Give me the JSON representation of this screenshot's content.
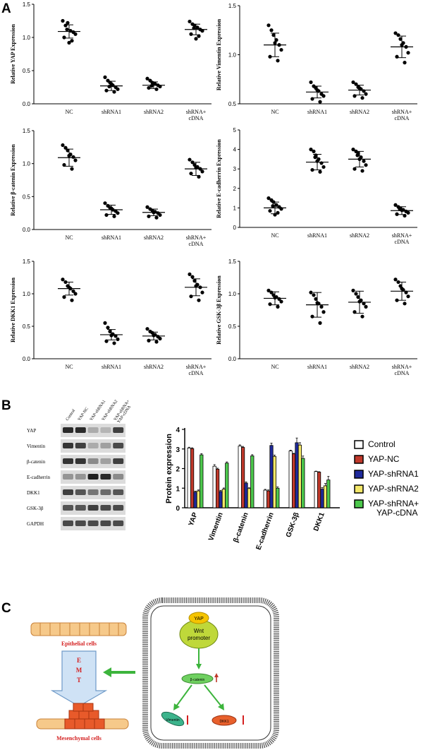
{
  "panels": {
    "a": "A",
    "b": "B",
    "c": "C"
  },
  "colors": {
    "control": "#ffffff",
    "yap_nc": "#c0392b",
    "yap_shrna1": "#1f2a9c",
    "yap_shrna2": "#f4e86a",
    "yap_shrna_cdna": "#4cc84c"
  },
  "chart_data": [
    {
      "type": "scatter",
      "ylabel": "Relative YAP Expression",
      "categories": [
        "NC",
        "shRNA1",
        "shRNA2",
        "shRNA+\ncDNA"
      ],
      "yticks": [
        "0.0",
        "0.5",
        "1.0",
        "1.5"
      ],
      "ylim": [
        0,
        1.5
      ],
      "means": [
        1.09,
        0.27,
        0.28,
        1.12
      ],
      "sd": [
        0.1,
        0.07,
        0.05,
        0.08
      ],
      "points": [
        [
          1.25,
          1.18,
          1.22,
          1.1,
          1.08,
          1.05,
          1.0,
          0.95,
          0.92,
          1.12
        ],
        [
          0.4,
          0.35,
          0.32,
          0.28,
          0.25,
          0.22,
          0.2,
          0.18,
          0.3,
          0.26
        ],
        [
          0.38,
          0.35,
          0.32,
          0.3,
          0.28,
          0.26,
          0.24,
          0.22,
          0.31,
          0.27
        ],
        [
          1.24,
          1.2,
          1.18,
          1.15,
          1.12,
          1.1,
          1.05,
          1.02,
          0.98,
          1.14
        ]
      ]
    },
    {
      "type": "scatter",
      "ylabel": "Relative Vimentin Expression",
      "categories": [
        "NC",
        "shRNA1",
        "shRNA2",
        "shRNA+\ncDNA"
      ],
      "yticks": [
        "0.5",
        "1.0",
        "1.5"
      ],
      "ylim": [
        0.5,
        1.5
      ],
      "means": [
        1.1,
        0.62,
        0.64,
        1.08
      ],
      "sd": [
        0.12,
        0.06,
        0.05,
        0.11
      ],
      "points": [
        [
          1.3,
          1.25,
          1.2,
          1.15,
          1.1,
          1.05,
          0.98,
          0.94,
          1.12
        ],
        [
          0.72,
          0.68,
          0.66,
          0.63,
          0.6,
          0.58,
          0.55,
          0.52,
          0.64
        ],
        [
          0.72,
          0.7,
          0.67,
          0.65,
          0.63,
          0.6,
          0.58,
          0.56,
          0.66
        ],
        [
          1.22,
          1.2,
          1.16,
          1.12,
          1.08,
          1.02,
          0.98,
          0.92,
          1.1
        ]
      ]
    },
    {
      "type": "scatter",
      "ylabel": "Relative β-catenin Expression",
      "categories": [
        "NC",
        "shRNA1",
        "shRNA2",
        "shRNA+\ncDNA"
      ],
      "yticks": [
        "0.0",
        "0.5",
        "1.0",
        "1.5"
      ],
      "ylim": [
        0,
        1.5
      ],
      "means": [
        1.09,
        0.3,
        0.26,
        0.92
      ],
      "sd": [
        0.13,
        0.07,
        0.05,
        0.1
      ],
      "points": [
        [
          1.28,
          1.24,
          1.2,
          1.14,
          1.1,
          1.05,
          0.98,
          0.92,
          1.12
        ],
        [
          0.4,
          0.36,
          0.33,
          0.3,
          0.28,
          0.25,
          0.22,
          0.2,
          0.32
        ],
        [
          0.34,
          0.31,
          0.29,
          0.27,
          0.25,
          0.22,
          0.2,
          0.18,
          0.26
        ],
        [
          1.06,
          1.02,
          0.98,
          0.95,
          0.92,
          0.88,
          0.85,
          0.8,
          0.94
        ]
      ]
    },
    {
      "type": "scatter",
      "ylabel": "Relative E-cadherrin Expression",
      "categories": [
        "NC",
        "shRNA1",
        "shRNA2",
        "shRNA+\ncDNA"
      ],
      "yticks": [
        "0",
        "1",
        "2",
        "3",
        "4",
        "5"
      ],
      "ylim": [
        0,
        5
      ],
      "means": [
        1.0,
        3.35,
        3.5,
        0.86
      ],
      "sd": [
        0.3,
        0.4,
        0.4,
        0.2
      ],
      "points": [
        [
          1.5,
          1.4,
          1.3,
          1.15,
          1.05,
          0.95,
          0.85,
          0.75,
          0.65,
          1.1
        ],
        [
          4.0,
          3.9,
          3.7,
          3.5,
          3.3,
          3.1,
          2.95,
          2.85,
          3.4,
          3.6
        ],
        [
          4.0,
          3.9,
          3.8,
          3.6,
          3.4,
          3.2,
          3.0,
          2.9,
          3.5,
          3.7
        ],
        [
          1.15,
          1.05,
          0.98,
          0.9,
          0.82,
          0.75,
          0.68,
          0.6,
          0.88,
          0.95
        ]
      ]
    },
    {
      "type": "scatter",
      "ylabel": "Relative DKK1 Expression",
      "categories": [
        "NC",
        "shRNA1",
        "shRNA2",
        "shRNA+\ncDNA"
      ],
      "yticks": [
        "0.0",
        "0.5",
        "1.0",
        "1.5"
      ],
      "ylim": [
        0,
        1.5
      ],
      "means": [
        1.08,
        0.37,
        0.35,
        1.1
      ],
      "sd": [
        0.1,
        0.08,
        0.06,
        0.13
      ],
      "points": [
        [
          1.22,
          1.18,
          1.12,
          1.08,
          1.04,
          1.0,
          0.95,
          0.9,
          1.1
        ],
        [
          0.55,
          0.48,
          0.42,
          0.38,
          0.35,
          0.3,
          0.27,
          0.24,
          0.36
        ],
        [
          0.46,
          0.42,
          0.4,
          0.37,
          0.34,
          0.31,
          0.28,
          0.26,
          0.36
        ],
        [
          1.3,
          1.26,
          1.2,
          1.14,
          1.1,
          1.02,
          0.96,
          0.9,
          1.12
        ]
      ]
    },
    {
      "type": "scatter",
      "ylabel": "Relative GSK-3β Expression",
      "categories": [
        "NC",
        "shRNA1",
        "shRNA2",
        "shRNA+\ncDNA"
      ],
      "yticks": [
        "0.0",
        "0.5",
        "1.0",
        "1.5"
      ],
      "ylim": [
        0,
        1.5
      ],
      "means": [
        0.93,
        0.83,
        0.87,
        1.04
      ],
      "sd": [
        0.1,
        0.19,
        0.17,
        0.14
      ],
      "points": [
        [
          1.05,
          1.02,
          0.98,
          0.95,
          0.92,
          0.88,
          0.84,
          0.8,
          0.94
        ],
        [
          1.02,
          0.98,
          0.92,
          0.85,
          0.8,
          0.72,
          0.65,
          0.55,
          0.86
        ],
        [
          1.05,
          1.0,
          0.95,
          0.9,
          0.85,
          0.8,
          0.72,
          0.65,
          0.88
        ],
        [
          1.22,
          1.18,
          1.12,
          1.06,
          1.02,
          0.96,
          0.9,
          0.85,
          1.08
        ]
      ]
    },
    {
      "type": "bar",
      "ylabel": "Protein expression",
      "categories": [
        "YAP",
        "Vimentin",
        "β-catenin",
        "E-cadherrin",
        "GSK-3β",
        "DKK1"
      ],
      "yticks": [
        "0",
        "1",
        "2",
        "3",
        "4"
      ],
      "ylim": [
        0,
        4
      ],
      "series": [
        {
          "name": "Control",
          "values": [
            3.05,
            2.12,
            3.15,
            0.9,
            2.9,
            1.85
          ],
          "err": [
            0.04,
            0.08,
            0.06,
            0.04,
            0.04,
            0.02
          ]
        },
        {
          "name": "YAP-NC",
          "values": [
            3.02,
            1.97,
            3.08,
            0.86,
            2.75,
            1.82
          ],
          "err": [
            0.04,
            0.05,
            0.05,
            0.05,
            0.03,
            0.02
          ]
        },
        {
          "name": "YAP-shRNA1",
          "values": [
            0.8,
            0.83,
            1.26,
            3.18,
            3.32,
            0.95
          ],
          "err": [
            0.05,
            0.06,
            0.06,
            0.12,
            0.24,
            0.08
          ]
        },
        {
          "name": "YAP-shRNA2",
          "values": [
            0.86,
            0.95,
            0.98,
            2.62,
            3.2,
            1.12
          ],
          "err": [
            0.05,
            0.06,
            0.04,
            0.07,
            0.12,
            0.12
          ]
        },
        {
          "name": "YAP-shRNA+\nYAP-cDNA",
          "values": [
            2.7,
            2.28,
            2.65,
            1.0,
            2.52,
            1.42
          ],
          "err": [
            0.06,
            0.06,
            0.06,
            0.07,
            0.12,
            0.18
          ]
        }
      ]
    }
  ],
  "blot": {
    "lanes": [
      "Control",
      "YAP-NC",
      "YAP-shRNA1",
      "YAP-shRNA2",
      "YAP-shRNA+\nYAP-cDNA"
    ],
    "rows": [
      {
        "label": "YAP",
        "intensity": [
          0.9,
          0.9,
          0.3,
          0.25,
          0.8
        ]
      },
      {
        "label": "Vimentin",
        "intensity": [
          0.85,
          0.8,
          0.3,
          0.35,
          0.75
        ]
      },
      {
        "label": "β-catenin",
        "intensity": [
          0.85,
          0.85,
          0.45,
          0.35,
          0.8
        ]
      },
      {
        "label": "E-cadherrin",
        "intensity": [
          0.4,
          0.4,
          0.95,
          0.9,
          0.45
        ]
      },
      {
        "label": "DKK1",
        "intensity": [
          0.8,
          0.7,
          0.55,
          0.6,
          0.7
        ]
      },
      {
        "label": "GSK-3β",
        "intensity": [
          0.7,
          0.7,
          0.8,
          0.75,
          0.75
        ]
      },
      {
        "label": "GAPDH",
        "intensity": [
          0.75,
          0.75,
          0.75,
          0.75,
          0.75
        ]
      }
    ]
  },
  "diagram": {
    "epithelial": "Epithelial cells",
    "emt": [
      "E",
      "M",
      "T"
    ],
    "mesenchymal": "Mesenchymal cells",
    "yap": "YAP",
    "wnt": [
      "Wnt",
      "promoter"
    ],
    "beta_catenin": "β-catenin",
    "vimentin": "Vimentin",
    "dkk1": "DKK1"
  }
}
